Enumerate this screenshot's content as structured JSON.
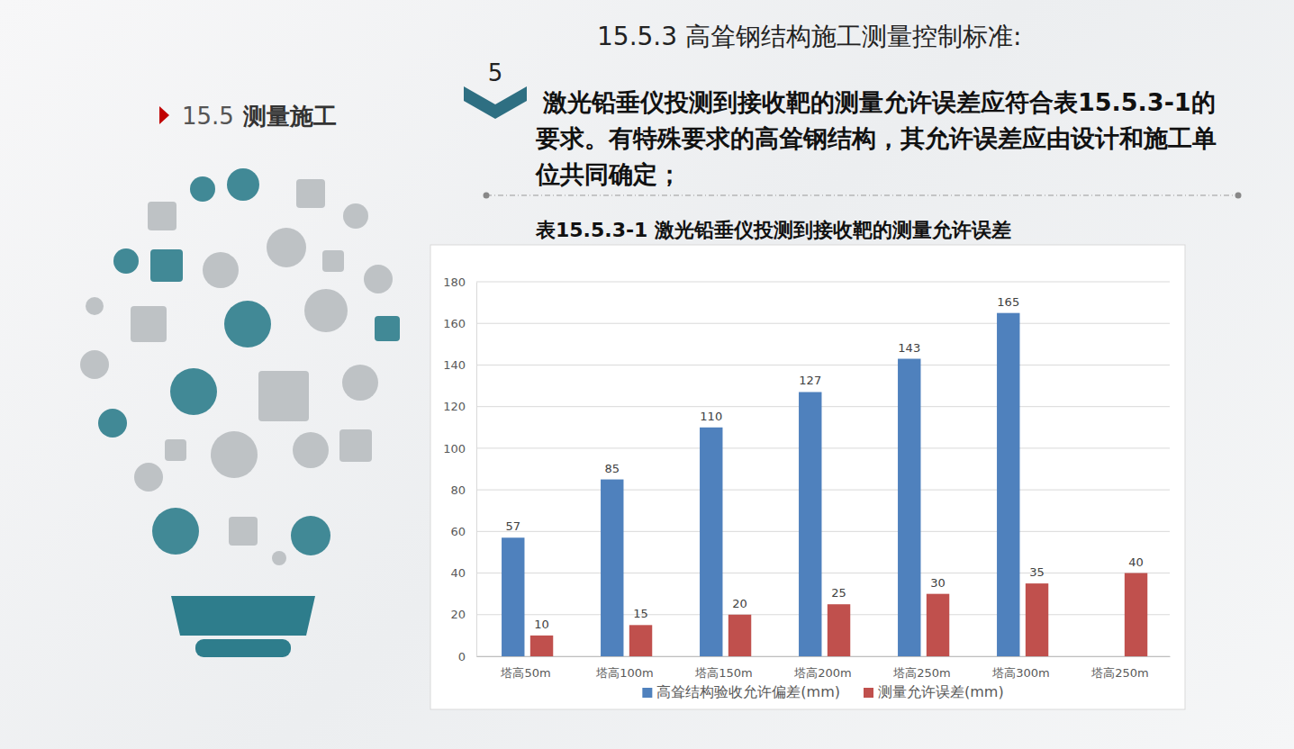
{
  "page": {
    "section_number": "15.5",
    "section_title": "测量施工",
    "badge": "5",
    "heading": "15.5.3 高耸钢结构施工测量控制标准:",
    "paragraph": "激光铅垂仪投测到接收靶的测量允许误差应符合表15.5.3-1的要求。有特殊要求的高耸钢结构，其允许误差应由设计和施工单位共同确定；"
  },
  "chart_data": {
    "type": "bar",
    "title": "表15.5.3-1 激光铅垂仪投测到接收靶的测量允许误差",
    "categories": [
      "塔高50m",
      "塔高100m",
      "塔高150m",
      "塔高200m",
      "塔高250m",
      "塔高300m",
      "塔高250m"
    ],
    "series": [
      {
        "name": "高耸结构验收允许偏差(mm)",
        "color": "#4f81bd",
        "values": [
          57,
          85,
          110,
          127,
          143,
          165,
          null
        ]
      },
      {
        "name": "测量允许误差(mm)",
        "color": "#c0504d",
        "values": [
          10,
          15,
          20,
          25,
          30,
          35,
          40
        ]
      }
    ],
    "ylim": [
      0,
      180
    ],
    "yticks": [
      0,
      20,
      40,
      60,
      80,
      100,
      120,
      140,
      160,
      180
    ],
    "grid": true,
    "data_labels": true,
    "legend": "bottom"
  }
}
